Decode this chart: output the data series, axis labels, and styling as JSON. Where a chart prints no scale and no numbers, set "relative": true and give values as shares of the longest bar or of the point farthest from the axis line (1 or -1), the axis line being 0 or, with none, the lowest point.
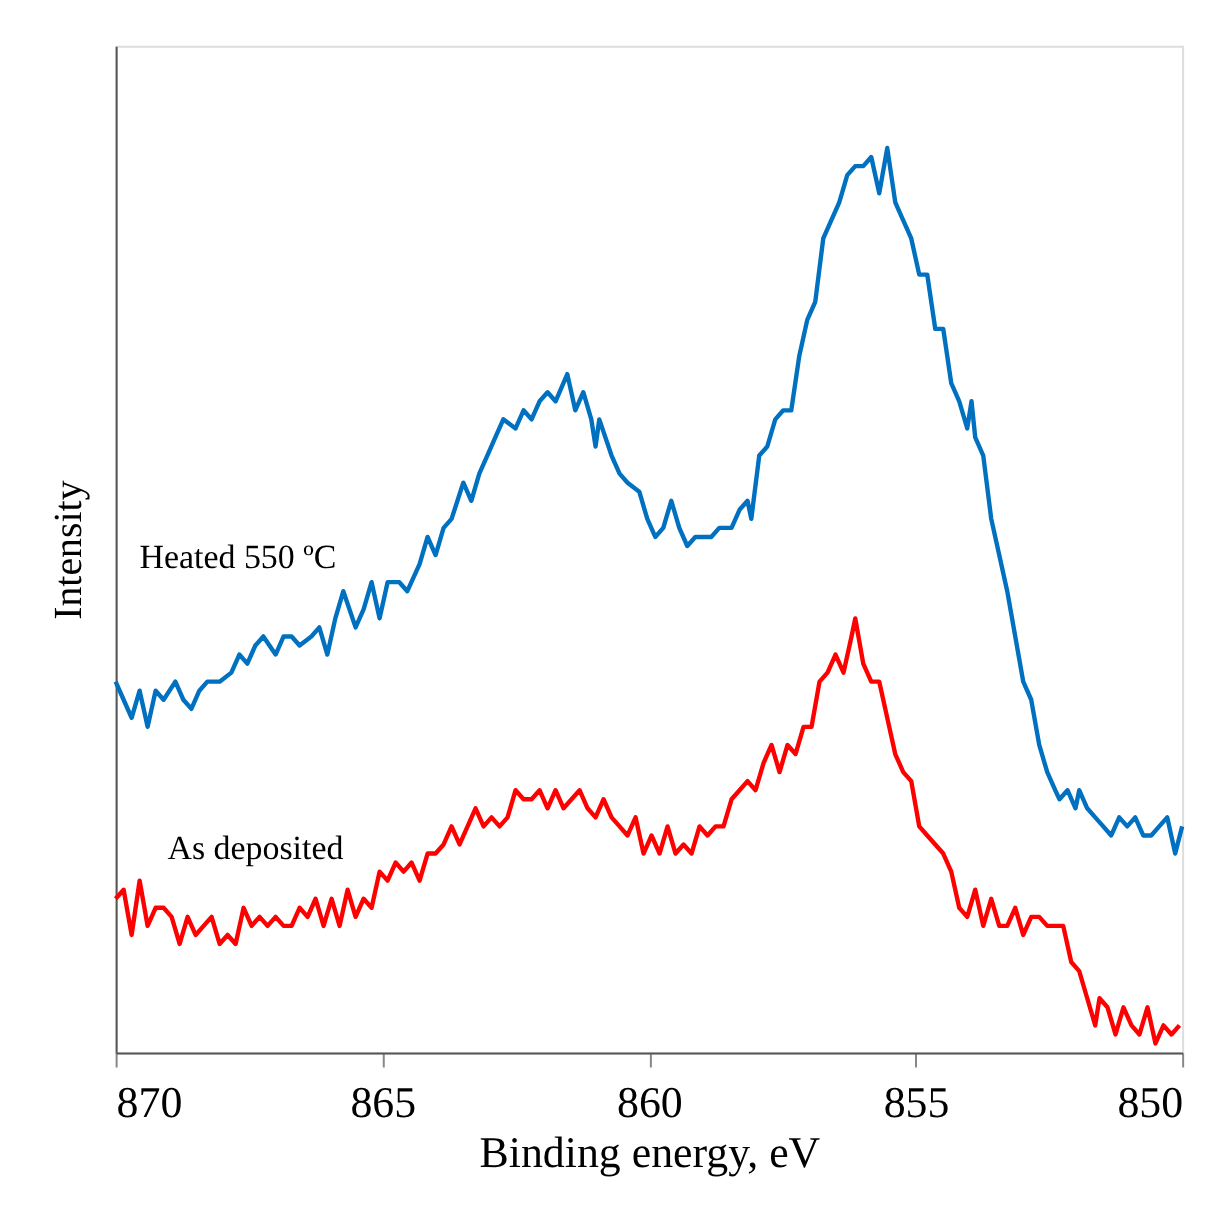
{
  "chart_data": {
    "type": "line",
    "xlabel": "Binding energy, eV",
    "ylabel": "Intensity",
    "relative": true,
    "xlim": [
      870,
      850
    ],
    "xticks": [
      870,
      865,
      860,
      855,
      850
    ],
    "marker": "none",
    "line_style": "solid",
    "series": [
      {
        "name": "Heated 550 ºC",
        "color": "#0070c0",
        "x": [
          870,
          869.85,
          869.7,
          869.55,
          869.4,
          869.25,
          869.1,
          868.88,
          868.73,
          868.58,
          868.43,
          868.28,
          868.05,
          867.83,
          867.68,
          867.53,
          867.38,
          867.23,
          867.0,
          866.85,
          866.7,
          866.55,
          866.33,
          866.18,
          866.03,
          865.88,
          865.73,
          865.5,
          865.35,
          865.2,
          865.05,
          864.9,
          864.68,
          864.53,
          864.3,
          864.15,
          864.0,
          863.85,
          863.7,
          863.48,
          863.33,
          863.18,
          863.03,
          862.88,
          862.73,
          862.5,
          862.35,
          862.2,
          862.05,
          861.9,
          861.75,
          861.53,
          861.38,
          861.23,
          861.08,
          861.0,
          860.93,
          860.7,
          860.55,
          860.4,
          860.18,
          860.03,
          859.88,
          859.73,
          859.58,
          859.43,
          859.28,
          859.13,
          858.98,
          858.83,
          858.68,
          858.45,
          858.3,
          858.15,
          858.08,
          857.93,
          857.78,
          857.63,
          857.48,
          857.33,
          857.18,
          857.03,
          856.88,
          856.73,
          856.58,
          856.43,
          856.28,
          856.13,
          855.98,
          855.83,
          855.68,
          855.53,
          855.38,
          855.23,
          855.08,
          854.93,
          854.78,
          854.63,
          854.48,
          854.33,
          854.18,
          854.03,
          853.95,
          853.88,
          853.73,
          853.58,
          853.43,
          853.28,
          853.13,
          852.98,
          852.83,
          852.68,
          852.53,
          852.38,
          852.3,
          852.15,
          852.0,
          851.93,
          851.78,
          851.63,
          851.48,
          851.33,
          851.18,
          851.03,
          850.88,
          850.73,
          850.58,
          850.43,
          850.28,
          850.13,
          850.0
        ],
        "values": [
          0.41,
          0.39,
          0.37,
          0.4,
          0.36,
          0.4,
          0.39,
          0.41,
          0.39,
          0.38,
          0.4,
          0.41,
          0.41,
          0.42,
          0.44,
          0.43,
          0.45,
          0.46,
          0.44,
          0.46,
          0.46,
          0.45,
          0.46,
          0.47,
          0.44,
          0.48,
          0.51,
          0.47,
          0.49,
          0.52,
          0.48,
          0.52,
          0.52,
          0.51,
          0.54,
          0.57,
          0.55,
          0.58,
          0.59,
          0.63,
          0.61,
          0.64,
          0.66,
          0.68,
          0.7,
          0.69,
          0.71,
          0.7,
          0.72,
          0.73,
          0.72,
          0.75,
          0.71,
          0.73,
          0.7,
          0.67,
          0.7,
          0.66,
          0.64,
          0.63,
          0.62,
          0.59,
          0.57,
          0.58,
          0.61,
          0.58,
          0.56,
          0.57,
          0.57,
          0.57,
          0.58,
          0.58,
          0.6,
          0.61,
          0.59,
          0.66,
          0.67,
          0.7,
          0.71,
          0.71,
          0.77,
          0.81,
          0.83,
          0.9,
          0.92,
          0.94,
          0.97,
          0.98,
          0.98,
          0.99,
          0.95,
          1.0,
          0.94,
          0.92,
          0.9,
          0.86,
          0.86,
          0.8,
          0.8,
          0.74,
          0.72,
          0.69,
          0.72,
          0.68,
          0.66,
          0.59,
          0.55,
          0.51,
          0.46,
          0.41,
          0.39,
          0.34,
          0.31,
          0.29,
          0.28,
          0.29,
          0.27,
          0.29,
          0.27,
          0.26,
          0.25,
          0.24,
          0.26,
          0.25,
          0.26,
          0.24,
          0.24,
          0.25,
          0.26,
          0.22,
          0.25
        ]
      },
      {
        "name": "As deposited",
        "color": "#ff0000",
        "x": [
          870,
          869.85,
          869.7,
          869.55,
          869.4,
          869.25,
          869.1,
          868.95,
          868.8,
          868.65,
          868.5,
          868.35,
          868.2,
          868.05,
          867.9,
          867.75,
          867.6,
          867.45,
          867.3,
          867.15,
          867.0,
          866.85,
          866.7,
          866.55,
          866.4,
          866.25,
          866.1,
          865.95,
          865.8,
          865.65,
          865.5,
          865.35,
          865.2,
          865.05,
          864.9,
          864.75,
          864.6,
          864.45,
          864.3,
          864.15,
          864.0,
          863.85,
          863.7,
          863.55,
          863.4,
          863.25,
          863.1,
          862.95,
          862.8,
          862.65,
          862.5,
          862.35,
          862.2,
          862.05,
          861.9,
          861.75,
          861.6,
          861.45,
          861.3,
          861.15,
          861.0,
          860.85,
          860.7,
          860.55,
          860.4,
          860.25,
          860.1,
          859.95,
          859.8,
          859.65,
          859.5,
          859.35,
          859.2,
          859.05,
          858.9,
          858.75,
          858.6,
          858.45,
          858.3,
          858.15,
          858.0,
          857.85,
          857.7,
          857.55,
          857.4,
          857.25,
          857.1,
          856.95,
          856.8,
          856.65,
          856.5,
          856.35,
          856.2,
          856.13,
          855.98,
          855.83,
          855.68,
          855.53,
          855.38,
          855.23,
          855.08,
          854.93,
          854.78,
          854.63,
          854.48,
          854.33,
          854.18,
          854.03,
          853.88,
          853.73,
          853.58,
          853.43,
          853.28,
          853.13,
          852.98,
          852.83,
          852.68,
          852.53,
          852.38,
          852.23,
          852.08,
          851.93,
          851.78,
          851.63,
          851.55,
          851.4,
          851.25,
          851.1,
          850.95,
          850.8,
          850.65,
          850.5,
          850.35,
          850.2,
          850.05
        ],
        "values": [
          0.17,
          0.18,
          0.13,
          0.19,
          0.14,
          0.16,
          0.16,
          0.15,
          0.12,
          0.15,
          0.13,
          0.14,
          0.15,
          0.12,
          0.13,
          0.12,
          0.16,
          0.14,
          0.15,
          0.14,
          0.15,
          0.14,
          0.14,
          0.16,
          0.15,
          0.17,
          0.14,
          0.17,
          0.14,
          0.18,
          0.15,
          0.17,
          0.16,
          0.2,
          0.19,
          0.21,
          0.2,
          0.21,
          0.19,
          0.22,
          0.22,
          0.23,
          0.25,
          0.23,
          0.25,
          0.27,
          0.25,
          0.26,
          0.25,
          0.26,
          0.29,
          0.28,
          0.28,
          0.29,
          0.27,
          0.29,
          0.27,
          0.28,
          0.29,
          0.27,
          0.26,
          0.28,
          0.26,
          0.25,
          0.24,
          0.26,
          0.22,
          0.24,
          0.22,
          0.25,
          0.22,
          0.23,
          0.22,
          0.25,
          0.24,
          0.25,
          0.25,
          0.28,
          0.29,
          0.3,
          0.29,
          0.32,
          0.34,
          0.31,
          0.34,
          0.33,
          0.36,
          0.36,
          0.41,
          0.42,
          0.44,
          0.42,
          0.46,
          0.48,
          0.43,
          0.41,
          0.41,
          0.37,
          0.33,
          0.31,
          0.3,
          0.25,
          0.24,
          0.23,
          0.22,
          0.2,
          0.16,
          0.15,
          0.18,
          0.14,
          0.17,
          0.14,
          0.14,
          0.16,
          0.13,
          0.15,
          0.15,
          0.14,
          0.14,
          0.14,
          0.1,
          0.09,
          0.06,
          0.03,
          0.06,
          0.05,
          0.02,
          0.05,
          0.03,
          0.02,
          0.05,
          0.01,
          0.03,
          0.02,
          0.03
        ]
      }
    ]
  }
}
